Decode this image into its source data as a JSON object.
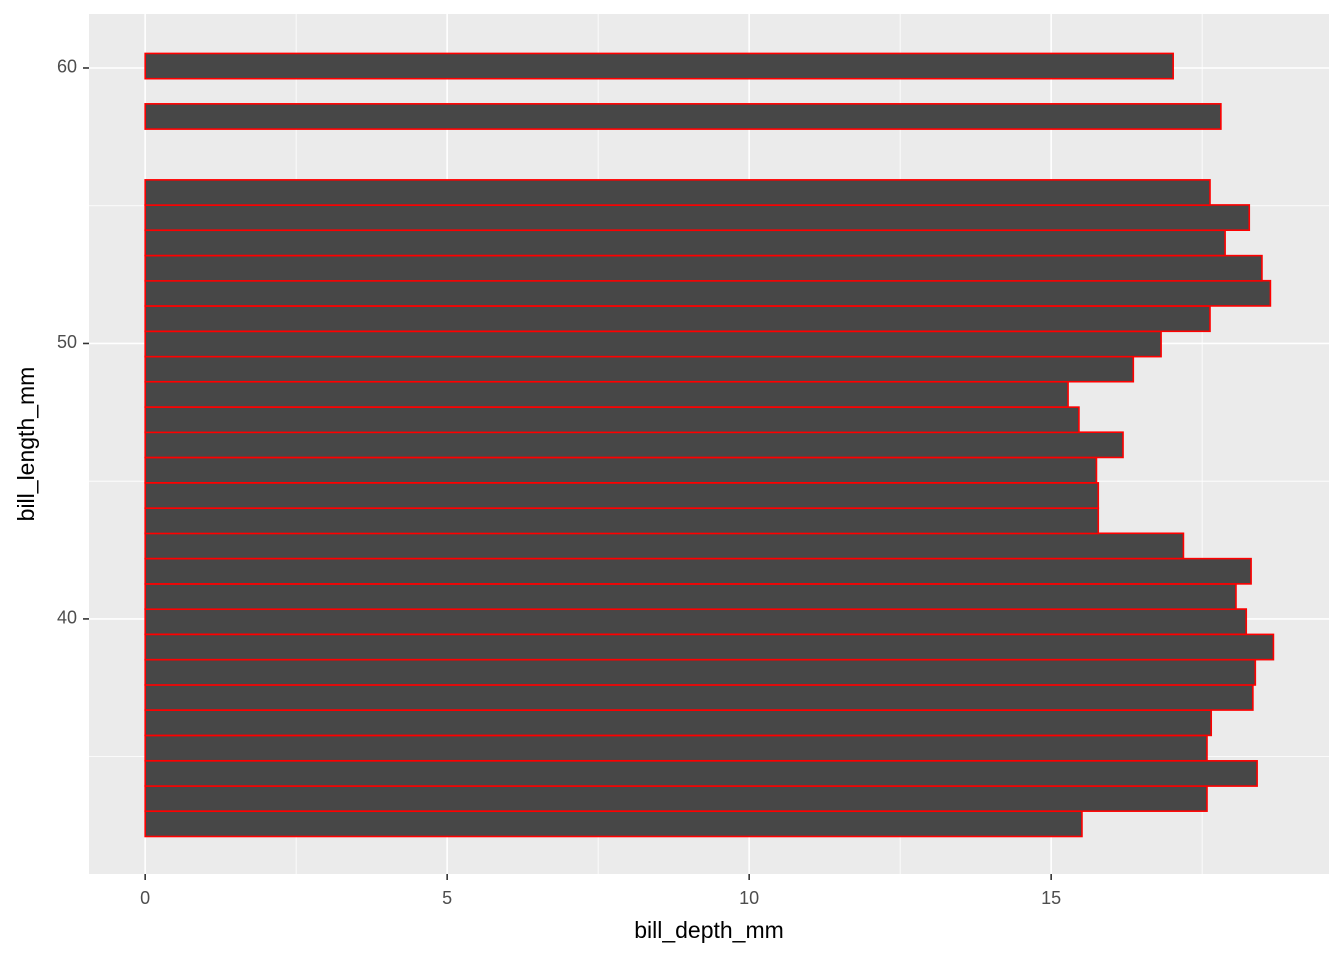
{
  "chart_data": {
    "type": "barh",
    "x_label": "bill_depth_mm",
    "y_label": "bill_length_mm",
    "y": [
      32.56,
      33.48,
      34.39,
      35.31,
      36.23,
      37.15,
      38.06,
      38.98,
      39.9,
      40.81,
      41.73,
      42.65,
      43.56,
      44.48,
      45.4,
      46.32,
      47.23,
      48.15,
      49.07,
      49.98,
      50.9,
      51.82,
      52.73,
      53.65,
      54.57,
      55.48,
      58.24,
      60.07
    ],
    "values": [
      15.51,
      17.58,
      18.41,
      17.58,
      17.65,
      18.34,
      18.38,
      18.68,
      18.23,
      18.06,
      18.31,
      17.19,
      15.78,
      15.78,
      15.75,
      16.19,
      15.46,
      15.28,
      16.36,
      16.82,
      17.63,
      18.63,
      18.49,
      17.88,
      18.28,
      17.63,
      17.81,
      17.02
    ],
    "bar_height": 0.917,
    "color": "#474747",
    "edge_color": "#ff0000",
    "xlim": [
      -0.93,
      19.6
    ],
    "xticks": [
      0,
      5,
      10,
      15
    ],
    "xminor": [
      2.5,
      7.5,
      12.5,
      17.5
    ],
    "ylim": [
      30.74,
      61.96
    ],
    "yticks": [
      40,
      50,
      60
    ],
    "yminor": [
      35,
      45,
      55
    ],
    "grid": true
  }
}
